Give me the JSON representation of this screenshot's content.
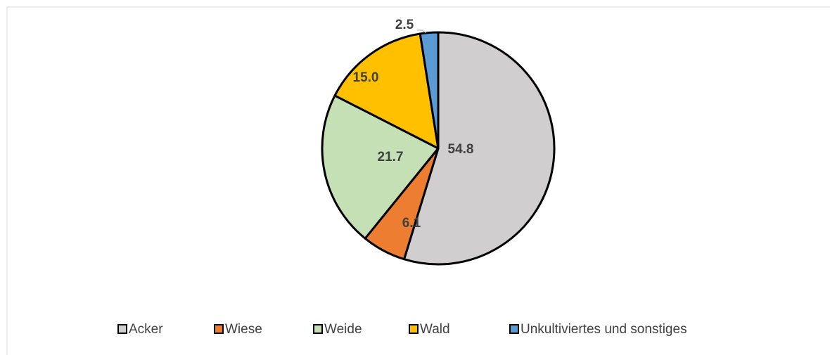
{
  "chart_data": {
    "type": "pie",
    "categories": [
      "Acker",
      "Wiese",
      "Weide",
      "Wald",
      "Unkultiviertes und sonstiges"
    ],
    "values": [
      54.8,
      6.1,
      21.7,
      15.0,
      2.5
    ],
    "value_labels": [
      "54.8",
      "6.1",
      "21.7",
      "15.0",
      "2.5"
    ],
    "colors": [
      "#d0cece",
      "#ed7d31",
      "#c5e0b4",
      "#ffc000",
      "#5b9bd5"
    ],
    "legend": "bottom"
  }
}
